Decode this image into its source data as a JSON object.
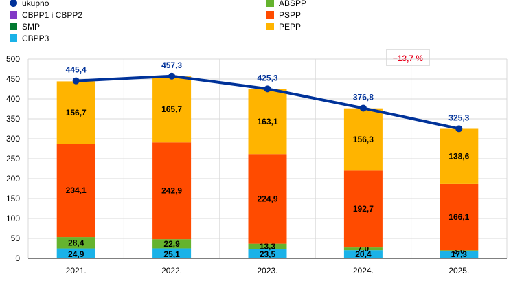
{
  "chart_data": {
    "type": "bar",
    "stacked": true,
    "categories": [
      "2021.",
      "2022.",
      "2023.",
      "2024.",
      "2025."
    ],
    "ylim": [
      0,
      500
    ],
    "yticks": [
      0,
      50,
      100,
      150,
      200,
      250,
      300,
      350,
      400,
      450,
      500
    ],
    "grid": "horizontal",
    "legend_position": "top-left",
    "series": [
      {
        "name": "CBPP3",
        "color": "#1ab2e8",
        "values": [
          24.9,
          25.1,
          23.5,
          20.4,
          17.3
        ],
        "labels": [
          "24,9",
          "25,1",
          "23,5",
          "20,4",
          "17,3"
        ]
      },
      {
        "name": "ABSPP",
        "color": "#65b32e",
        "values": [
          28.4,
          22.9,
          13.3,
          7.0,
          3.0
        ],
        "labels": [
          "28,4",
          "22,9",
          "13,3",
          "7,0",
          "3,0"
        ]
      },
      {
        "name": "PSPP",
        "color": "#ff4b00",
        "values": [
          234.1,
          242.9,
          224.9,
          192.7,
          166.1
        ],
        "labels": [
          "234,1",
          "242,9",
          "224,9",
          "192,7",
          "166,1"
        ]
      },
      {
        "name": "PEPP",
        "color": "#ffb400",
        "values": [
          156.7,
          165.7,
          163.1,
          156.3,
          138.6
        ],
        "labels": [
          "156,7",
          "165,7",
          "163,1",
          "156,3",
          "138,6"
        ]
      }
    ],
    "line_series": {
      "name": "ukupno",
      "color": "#003299",
      "values": [
        445.4,
        457.3,
        425.3,
        376.8,
        325.3
      ],
      "labels": [
        "445,4",
        "457,3",
        "425,3",
        "376,8",
        "325,3"
      ]
    },
    "annotation": "–13,7 %"
  },
  "legend": {
    "col1": [
      {
        "label": "ukupno",
        "color": "#003299",
        "shape": "dot"
      },
      {
        "label": "CBPP1 i CBPP2",
        "color": "#8139c6",
        "shape": "square"
      },
      {
        "label": "SMP",
        "color": "#00782f",
        "shape": "square"
      },
      {
        "label": "CBPP3",
        "color": "#1ab2e8",
        "shape": "square"
      }
    ],
    "col2": [
      {
        "label": "ABSPP",
        "color": "#65b32e",
        "shape": "square"
      },
      {
        "label": "PSPP",
        "color": "#ff4b00",
        "shape": "square"
      },
      {
        "label": "PEPP",
        "color": "#ffb400",
        "shape": "square"
      }
    ]
  }
}
